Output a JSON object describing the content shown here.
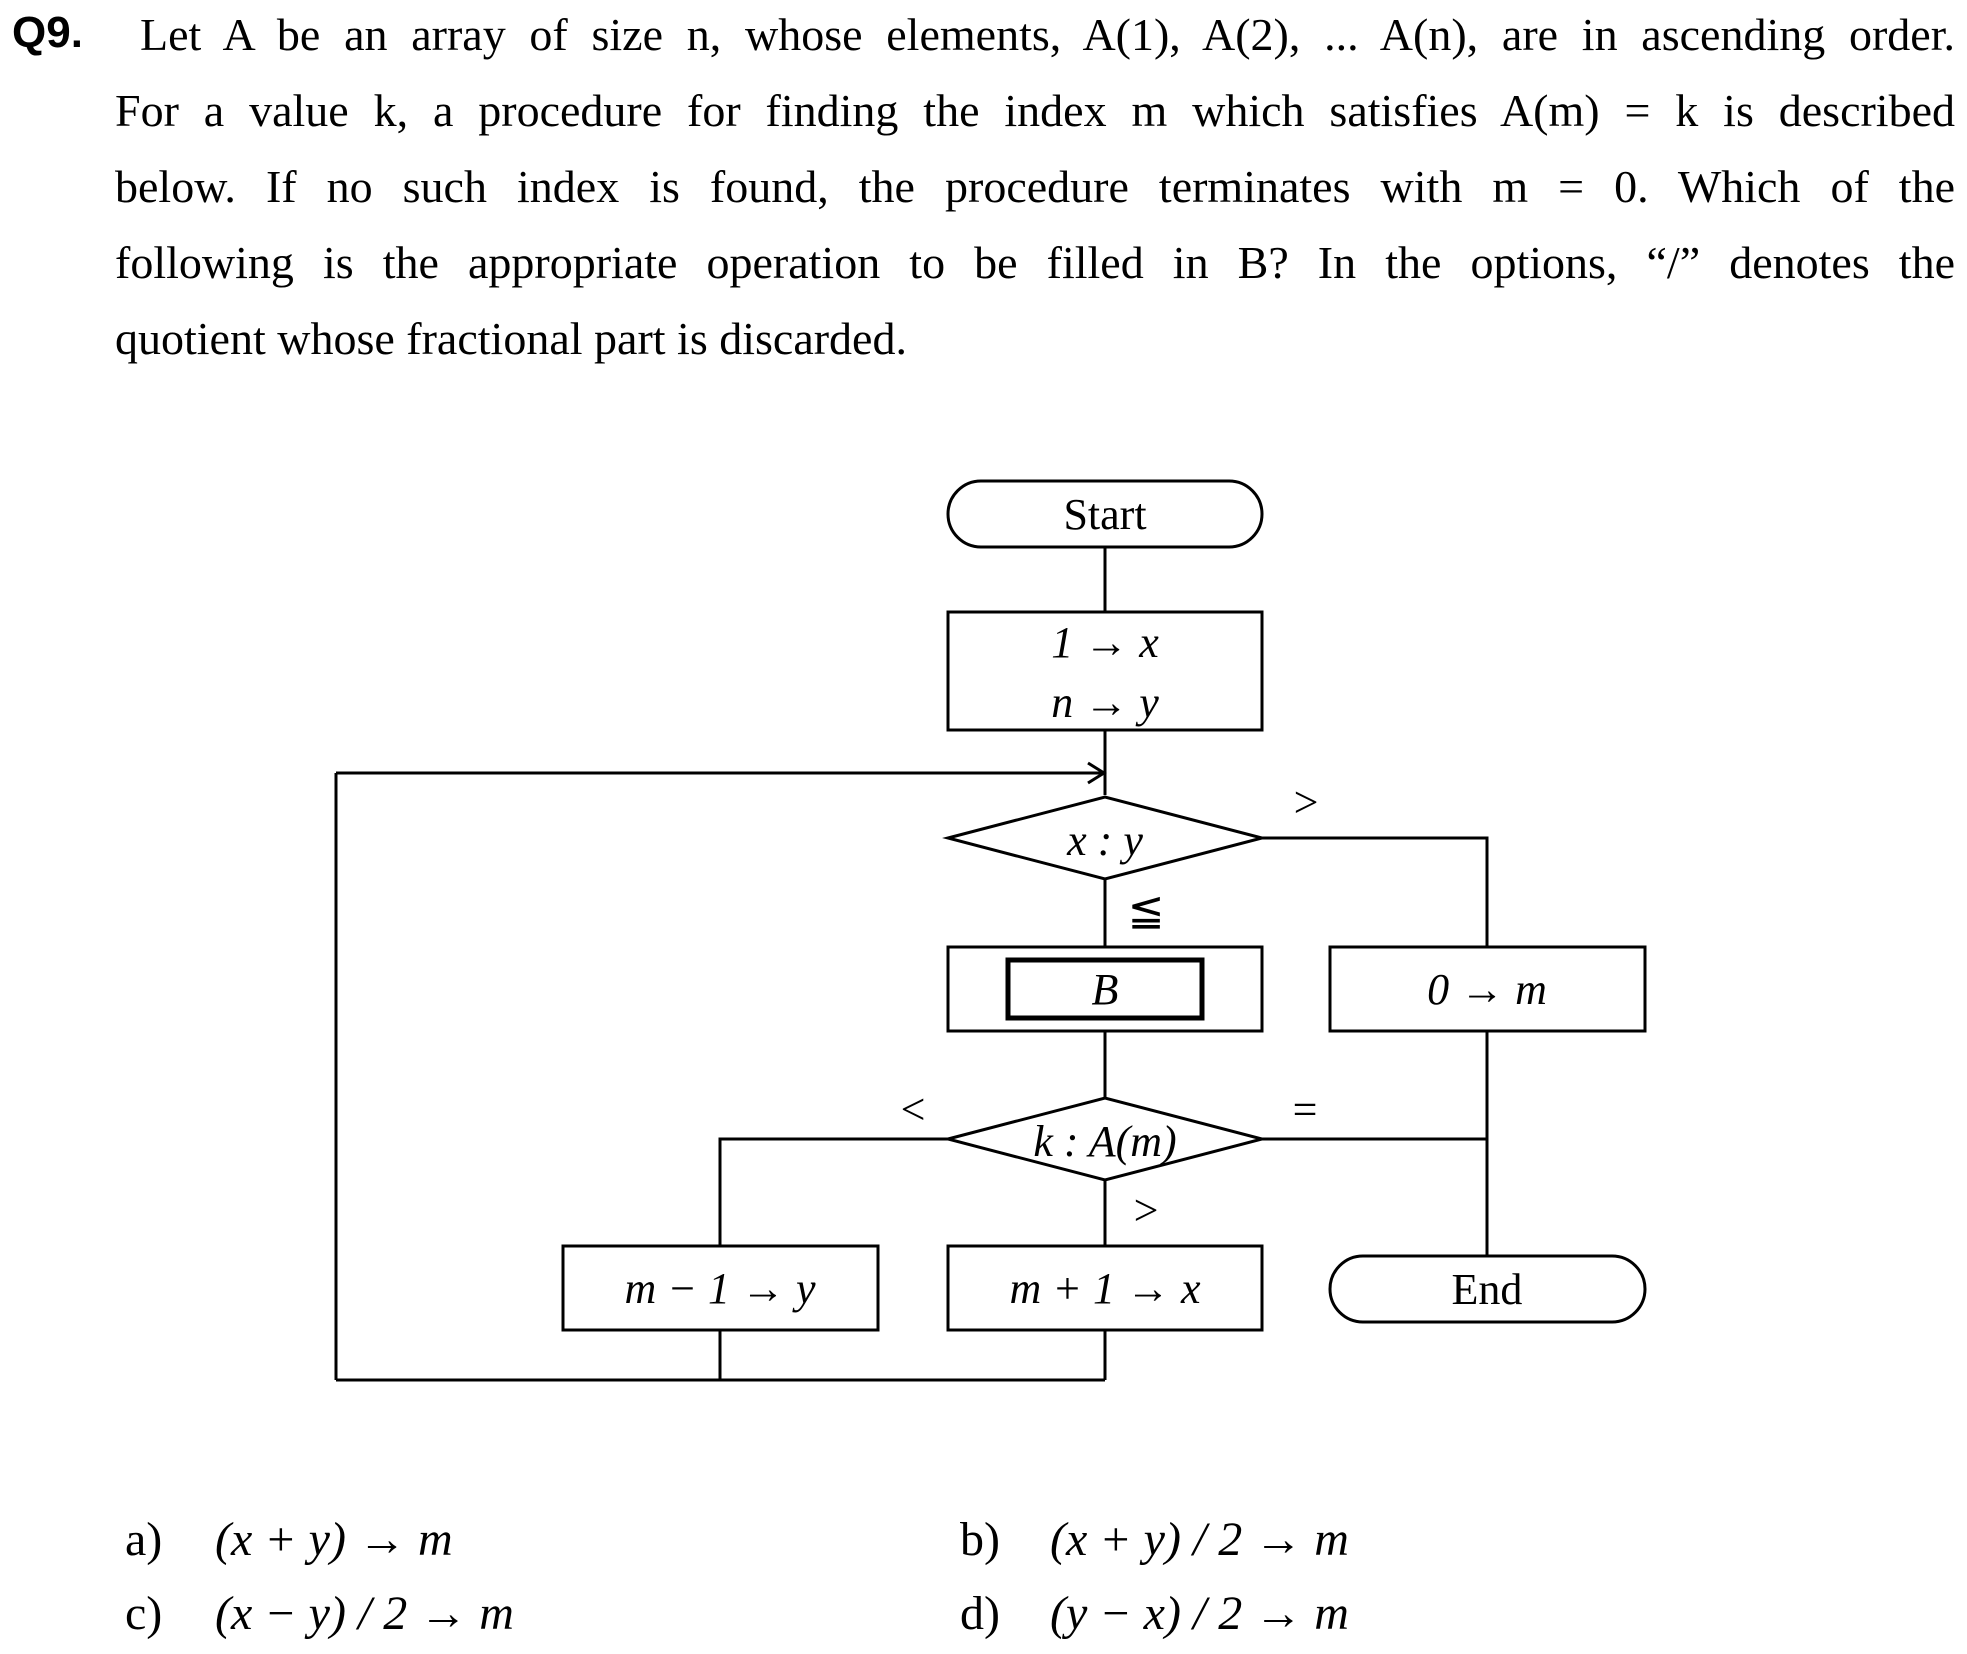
{
  "question": {
    "number": "Q9.",
    "lines": [
      "Let A be an array of size n, whose elements, A(1), A(2), ... A(n), are in ascending order.",
      "For a value k, a procedure for finding the index m which satisfies A(m) = k is described",
      "below. If no such index is found, the procedure terminates with m = 0. Which of the",
      "following is the appropriate operation to be filled in B? In the options, “/” denotes the",
      "quotient whose fractional part is discarded."
    ]
  },
  "flowchart": {
    "start": "Start",
    "init_line1": "1 → x",
    "init_line2": "n → y",
    "compare_xy": "x : y",
    "le_symbol": "≦",
    "gt_symbol_top": ">",
    "box_b": "B",
    "zero_to_m": "0 → m",
    "compare_k": "k : A(m)",
    "lt_symbol": "<",
    "eq_symbol": "=",
    "gt_symbol_bottom": ">",
    "m_minus": "m − 1 → y",
    "m_plus": "m + 1 → x",
    "end": "End"
  },
  "options": [
    {
      "label": "a)",
      "text": "(x + y) → m"
    },
    {
      "label": "b)",
      "text": "(x + y) / 2 → m"
    },
    {
      "label": "c)",
      "text": "(x − y) / 2 → m"
    },
    {
      "label": "d)",
      "text": "(y − x) / 2 → m"
    }
  ]
}
